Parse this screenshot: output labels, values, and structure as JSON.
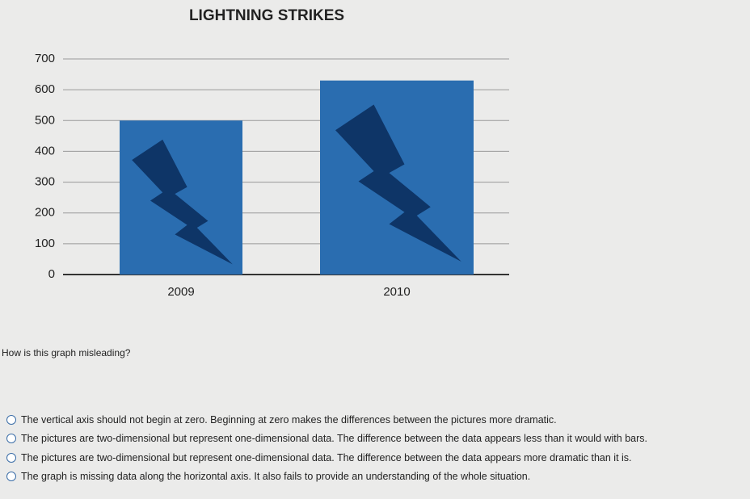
{
  "chart_data": {
    "type": "bar",
    "title": "LIGHTNING STRIKES",
    "categories": [
      "2009",
      "2010"
    ],
    "values": [
      500,
      630
    ],
    "color": "#2a6db0",
    "ylim": [
      0,
      700
    ],
    "yticks": [
      0,
      100,
      200,
      300,
      400,
      500,
      600,
      700
    ],
    "grid": true
  },
  "question": "How is this graph misleading?",
  "options": [
    "The vertical axis should not begin at zero. Beginning at zero makes the differences between the pictures more dramatic.",
    "The pictures are two-dimensional but represent one-dimensional data. The difference between the data appears less than it would with bars.",
    "The pictures are two-dimensional but represent one-dimensional data. The difference between the data appears more dramatic than it is.",
    "The graph is missing data along the horizontal axis. It also fails to provide an understanding of the whole situation."
  ]
}
